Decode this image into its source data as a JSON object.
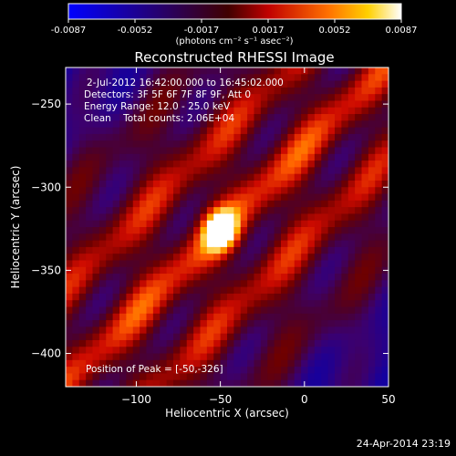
{
  "figure": {
    "title": "Reconstructed RHESSI Image",
    "footer_timestamp": "24-Apr-2014 23:19"
  },
  "colorbar": {
    "ticks": [
      "-0.0087",
      "-0.0052",
      "-0.0017",
      "0.0017",
      "0.0052",
      "0.0087"
    ],
    "min": -0.0087,
    "max": 0.0087,
    "units": "(photons cm⁻² s⁻¹ asec⁻²)",
    "colormap": [
      "#0000ff",
      "#3a007a",
      "#7a0000",
      "#ff0000",
      "#ff9a00",
      "#ffffff"
    ]
  },
  "annotations": {
    "time_range": "2-Jul-2012 16:42:00.000 to 16:45:02.000",
    "detectors": "Detectors: 3F 5F 6F 7F 8F 9F, Att 0",
    "energy_range": "Energy Range: 12.0 - 25.0 keV",
    "clean": "Clean    Total counts: 2.06E+04",
    "peak": "Position of Peak = [-50,-326]"
  },
  "chart_data": {
    "type": "heatmap",
    "title": "Reconstructed RHESSI Image",
    "xlabel": "Heliocentric X (arcsec)",
    "ylabel": "Heliocentric Y (arcsec)",
    "xlim": [
      -142,
      50
    ],
    "ylim": [
      -420,
      -228
    ],
    "xticks": [
      -100,
      -50,
      0,
      50
    ],
    "yticks": [
      -250,
      -300,
      -350,
      -400
    ],
    "peak": {
      "x": -50,
      "y": -326
    },
    "value_range": [
      -0.0087,
      0.0087
    ],
    "stripe_orientation": "diagonal lower-left to upper-right"
  }
}
